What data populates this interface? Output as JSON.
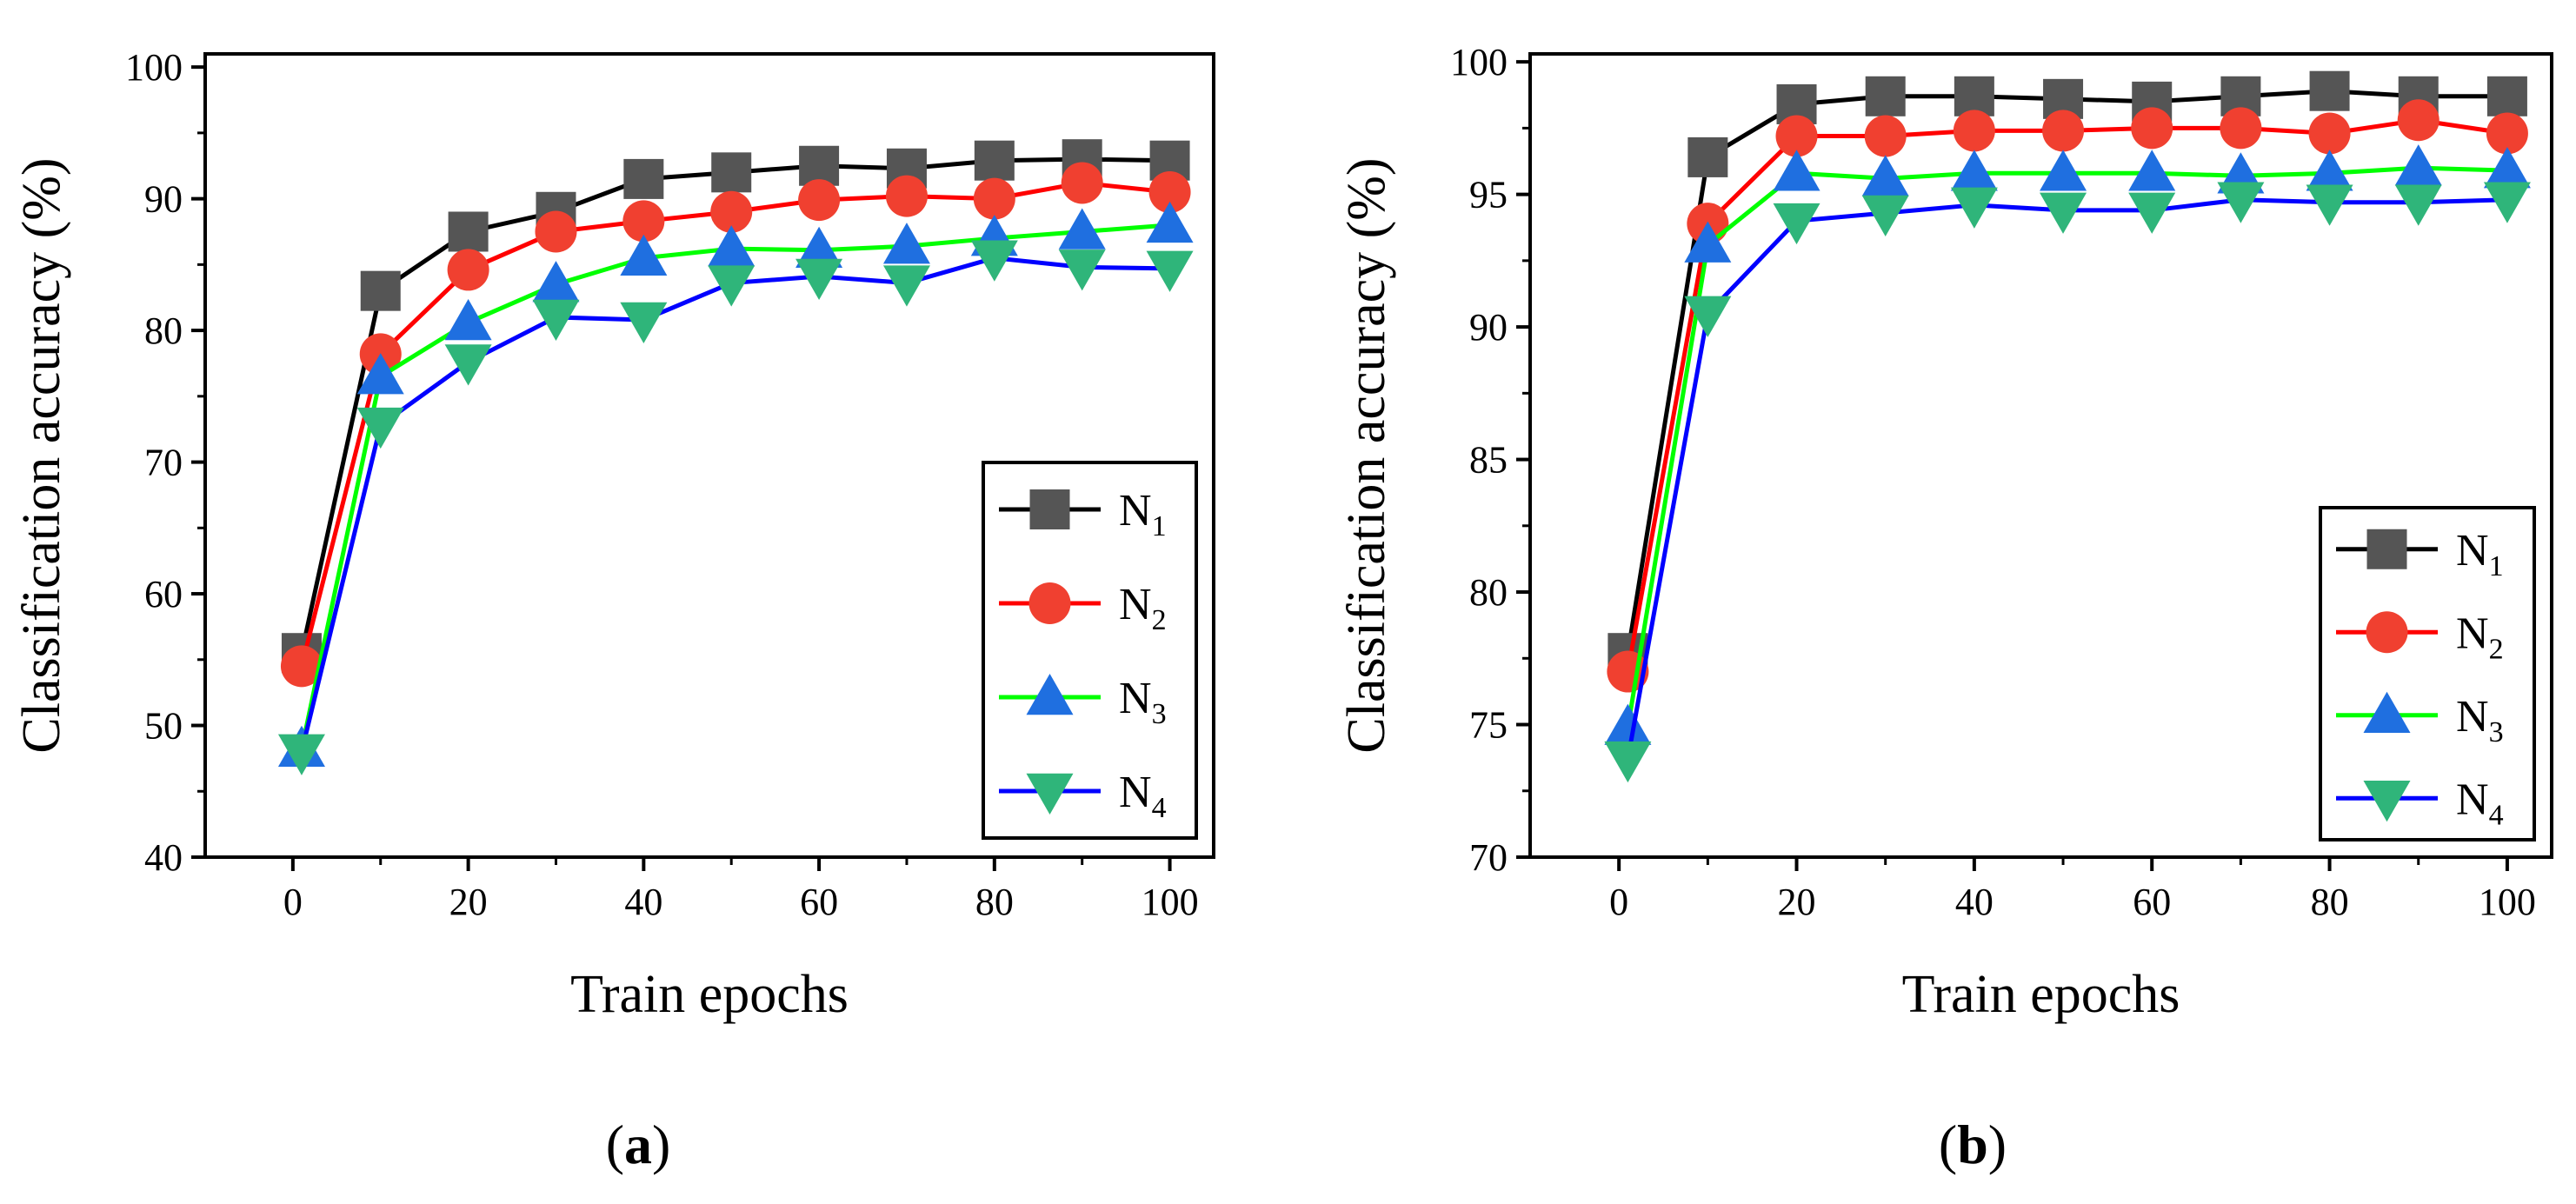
{
  "chart_data": [
    {
      "type": "line",
      "panel_label": "a",
      "xlabel": "Train epochs",
      "ylabel": "Classification accuracy (%)",
      "xlim": [
        -10,
        105
      ],
      "ylim": [
        40,
        101
      ],
      "xticks": [
        0,
        20,
        40,
        60,
        80,
        100
      ],
      "yticks": [
        40,
        50,
        60,
        70,
        80,
        90,
        100
      ],
      "grid": false,
      "legend": "bottom-right",
      "x": [
        1,
        10,
        20,
        30,
        40,
        50,
        60,
        70,
        80,
        90,
        100
      ],
      "series": [
        {
          "name": "N",
          "sub": "1",
          "color": "#000000",
          "marker": "square",
          "values": [
            55.5,
            83.0,
            87.5,
            89.0,
            91.5,
            92.0,
            92.5,
            92.3,
            92.9,
            93.0,
            92.9
          ]
        },
        {
          "name": "N",
          "sub": "2",
          "color": "#ff0000",
          "marker": "circle",
          "values": [
            54.5,
            78.2,
            84.6,
            87.5,
            88.3,
            89.0,
            89.9,
            90.2,
            90.0,
            91.2,
            90.5
          ]
        },
        {
          "name": "N",
          "sub": "3",
          "color": "#00ff00",
          "marker": "triangle-up",
          "values": [
            48.2,
            76.5,
            80.6,
            83.5,
            85.5,
            86.2,
            86.1,
            86.4,
            87.0,
            87.5,
            88.0
          ]
        },
        {
          "name": "N",
          "sub": "4",
          "color": "#0000ff",
          "marker": "triangle-down",
          "values": [
            48.0,
            72.8,
            77.6,
            81.0,
            80.8,
            83.6,
            84.1,
            83.6,
            85.5,
            84.8,
            84.7
          ]
        }
      ]
    },
    {
      "type": "line",
      "panel_label": "b",
      "xlabel": "Train epochs",
      "ylabel": "Classification accuracy (%)",
      "xlim": [
        -10,
        105
      ],
      "ylim": [
        70,
        100.3
      ],
      "xticks": [
        0,
        20,
        40,
        60,
        80,
        100
      ],
      "yticks": [
        70,
        75,
        80,
        85,
        90,
        95,
        100
      ],
      "grid": false,
      "legend": "bottom-right",
      "x": [
        1,
        10,
        20,
        30,
        40,
        50,
        60,
        70,
        80,
        90,
        100
      ],
      "series": [
        {
          "name": "N",
          "sub": "1",
          "color": "#000000",
          "marker": "square",
          "values": [
            77.7,
            96.4,
            98.4,
            98.7,
            98.7,
            98.6,
            98.5,
            98.7,
            98.9,
            98.7,
            98.7
          ]
        },
        {
          "name": "N",
          "sub": "2",
          "color": "#ff0000",
          "marker": "circle",
          "values": [
            77.0,
            93.9,
            97.2,
            97.2,
            97.4,
            97.4,
            97.5,
            97.5,
            97.3,
            97.8,
            97.3
          ]
        },
        {
          "name": "N",
          "sub": "3",
          "color": "#00ff00",
          "marker": "triangle-up",
          "values": [
            74.9,
            93.1,
            95.8,
            95.6,
            95.8,
            95.8,
            95.8,
            95.7,
            95.8,
            96.0,
            95.9
          ]
        },
        {
          "name": "N",
          "sub": "4",
          "color": "#0000ff",
          "marker": "triangle-down",
          "values": [
            73.7,
            90.5,
            94.0,
            94.3,
            94.6,
            94.4,
            94.4,
            94.8,
            94.7,
            94.7,
            94.8
          ]
        }
      ]
    }
  ]
}
